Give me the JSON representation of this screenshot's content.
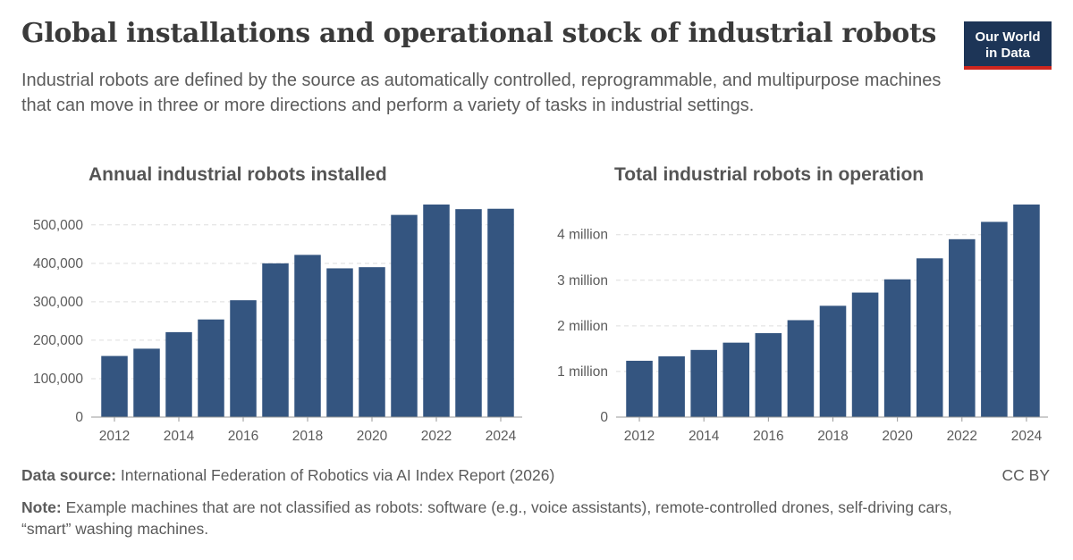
{
  "title": "Global installations and operational stock of industrial robots",
  "subtitle": "Industrial robots are defined by the source as automatically controlled, reprogrammable, and multipurpose machines that can move in three or more directions and perform a variety of tasks in industrial settings.",
  "logo": {
    "line1": "Our World",
    "line2": "in Data"
  },
  "colors": {
    "bar": "#345580",
    "grid": "#dddddd",
    "axis": "#5b5b5b",
    "logo_bg": "#1d3557",
    "logo_accent": "#ce261e"
  },
  "chart_data": [
    {
      "type": "bar",
      "title": "Annual industrial robots installed",
      "categories": [
        2012,
        2013,
        2014,
        2015,
        2016,
        2017,
        2018,
        2019,
        2020,
        2021,
        2022,
        2023,
        2024
      ],
      "values": [
        159000,
        178000,
        221000,
        254000,
        304000,
        400000,
        422000,
        387000,
        390000,
        526000,
        553000,
        541000,
        542000
      ],
      "xticks": [
        "2012",
        "2014",
        "2016",
        "2018",
        "2020",
        "2022",
        "2024"
      ],
      "yticks": [
        0,
        100000,
        200000,
        300000,
        400000,
        500000
      ],
      "yticklabels": [
        "0",
        "100,000",
        "200,000",
        "300,000",
        "400,000",
        "500,000"
      ],
      "ylim": [
        0,
        553000
      ],
      "grid": true
    },
    {
      "type": "bar",
      "title": "Total industrial robots in operation",
      "categories": [
        2012,
        2013,
        2014,
        2015,
        2016,
        2017,
        2018,
        2019,
        2020,
        2021,
        2022,
        2023,
        2024
      ],
      "values": [
        1235000,
        1332000,
        1472000,
        1632000,
        1840000,
        2125000,
        2440000,
        2730000,
        3020000,
        3480000,
        3900000,
        4280000,
        4660000
      ],
      "xticks": [
        "2012",
        "2014",
        "2016",
        "2018",
        "2020",
        "2022",
        "2024"
      ],
      "yticks": [
        0,
        1000000,
        2000000,
        3000000,
        4000000
      ],
      "yticklabels": [
        "0",
        "1 million",
        "2 million",
        "3 million",
        "4 million"
      ],
      "ylim": [
        0,
        4660000
      ],
      "grid": true
    }
  ],
  "footer": {
    "source_label": "Data source:",
    "source_text": " International Federation of Robotics via AI Index Report (2026)",
    "license": "CC BY",
    "note_label": "Note:",
    "note_text": " Example machines that are not classified as robots: software (e.g., voice assistants), remote-controlled drones, self-driving cars, “smart” washing machines."
  }
}
